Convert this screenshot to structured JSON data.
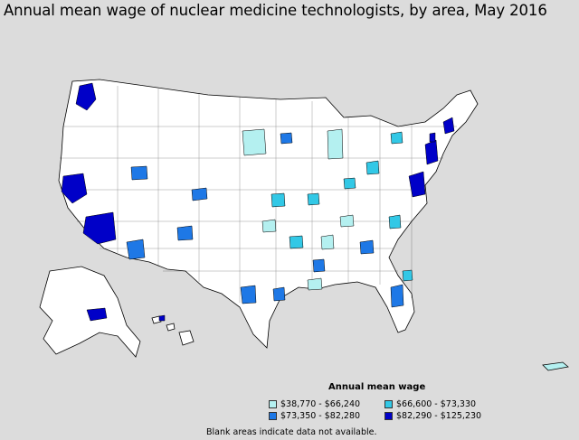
{
  "map": {
    "title": "Annual mean wage of nuclear medicine technologists, by area, May 2016",
    "legend": {
      "title": "Annual mean wage",
      "items": [
        {
          "range": "$38,770 - $66,240",
          "color": "#b4f0f0"
        },
        {
          "range": "$66,600 - $73,330",
          "color": "#32c8e6"
        },
        {
          "range": "$73,350 - $82,280",
          "color": "#1e78e6"
        },
        {
          "range": "$82,290 - $125,230",
          "color": "#0000c8"
        }
      ]
    },
    "footnote": "Blank areas indicate data not available.",
    "no_data_color": "#ffffff",
    "background_color": "#dcdcdc"
  }
}
